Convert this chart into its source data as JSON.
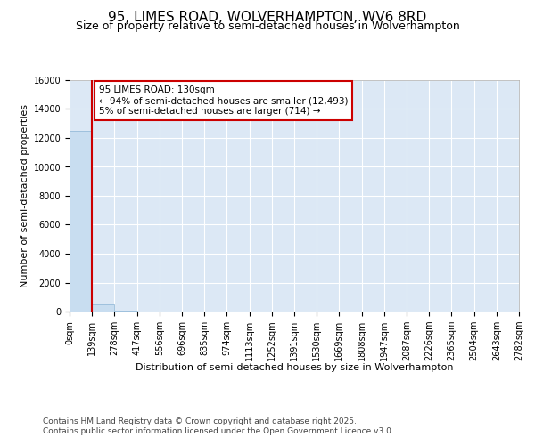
{
  "title": "95, LIMES ROAD, WOLVERHAMPTON, WV6 8RD",
  "subtitle": "Size of property relative to semi-detached houses in Wolverhampton",
  "xlabel": "Distribution of semi-detached houses by size in Wolverhampton",
  "ylabel": "Number of semi-detached properties",
  "footnote1": "Contains HM Land Registry data © Crown copyright and database right 2025.",
  "footnote2": "Contains public sector information licensed under the Open Government Licence v3.0.",
  "bar_values": [
    12493,
    514,
    50,
    20,
    8,
    5,
    3,
    2,
    2,
    1,
    1,
    1,
    1,
    1,
    1,
    1,
    1,
    1,
    1,
    1
  ],
  "bar_color": "#c8ddf0",
  "bar_edge_color": "#8ab4d4",
  "bin_labels": [
    "0sqm",
    "139sqm",
    "278sqm",
    "417sqm",
    "556sqm",
    "696sqm",
    "835sqm",
    "974sqm",
    "1113sqm",
    "1252sqm",
    "1391sqm",
    "1530sqm",
    "1669sqm",
    "1808sqm",
    "1947sqm",
    "2087sqm",
    "2226sqm",
    "2365sqm",
    "2504sqm",
    "2643sqm",
    "2782sqm"
  ],
  "property_line_x": 1,
  "property_sqm": 130,
  "smaller_pct": 94,
  "smaller_count": 12493,
  "larger_pct": 5,
  "larger_count": 714,
  "annotation_text_line1": "95 LIMES ROAD: 130sqm",
  "annotation_text_line2": "← 94% of semi-detached houses are smaller (12,493)",
  "annotation_text_line3": "5% of semi-detached houses are larger (714) →",
  "vline_color": "#cc0000",
  "annotation_box_edge_color": "#cc0000",
  "fig_background_color": "#ffffff",
  "plot_bg_color": "#dce8f5",
  "grid_color": "#ffffff",
  "ylim": [
    0,
    16000
  ],
  "title_fontsize": 11,
  "subtitle_fontsize": 9,
  "ylabel_fontsize": 8,
  "xlabel_fontsize": 8,
  "tick_fontsize": 7,
  "footnote_fontsize": 6.5
}
